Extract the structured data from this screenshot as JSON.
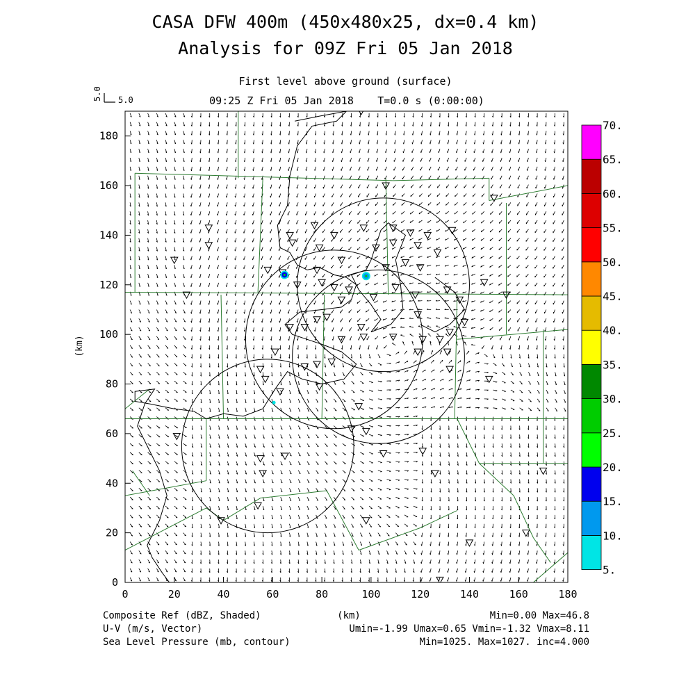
{
  "header": {
    "title_line1": "CASA DFW 400m (450x480x25, dx=0.4 km)",
    "title_line2": "Analysis for 09Z Fri 05 Jan 2018",
    "level": "First level above ground (surface)",
    "valid_time": "09:25 Z Fri 05 Jan 2018",
    "model_time": "T=0.0 s (0:00:00)",
    "ref_vector_label": "5.0",
    "ref_vector_label_vertical": "5.0"
  },
  "footer": {
    "field1": "Composite Ref (dBZ, Shaded)",
    "field1_stats": "Min=0.00 Max=46.8",
    "field2": "U-V (m/s, Vector)",
    "field2_stats": "Umin=-1.99 Umax=0.65 Vmin=-1.32 Vmax=8.11",
    "field3": "Sea Level Pressure (mb, contour)",
    "field3_stats": "Min=1025. Max=1027. inc=4.000",
    "xunit": "(km)"
  },
  "colors": {
    "border": "#2e7d32",
    "contour": "#000000",
    "vector": "#000000"
  },
  "chart_data": {
    "type": "heatmap",
    "xlabel": "(km)",
    "ylabel": "(km)",
    "xlim": [
      0,
      180
    ],
    "ylim": [
      0,
      190
    ],
    "x_ticks": [
      "0",
      "20",
      "40",
      "60",
      "80",
      "100",
      "120",
      "140",
      "160",
      "180"
    ],
    "y_ticks": [
      "0",
      "20",
      "40",
      "60",
      "80",
      "100",
      "120",
      "140",
      "160",
      "180"
    ],
    "colorbar": {
      "labels": [
        "5.",
        "10.",
        "15.",
        "20.",
        "25.",
        "30.",
        "35.",
        "40.",
        "45.",
        "50.",
        "55.",
        "60.",
        "65.",
        "70."
      ],
      "colors": [
        "#00e5e5",
        "#0099ee",
        "#0000ee",
        "#00ff00",
        "#00cc00",
        "#008800",
        "#ffff00",
        "#e5bb00",
        "#ff8800",
        "#ff0000",
        "#dd0000",
        "#bb0000",
        "#ff00ff"
      ]
    },
    "reflectivity_cells": [
      {
        "x": 64.8,
        "y": 124.0,
        "dbz": 15
      },
      {
        "x": 98.0,
        "y": 123.5,
        "dbz": 12
      },
      {
        "x": 60.5,
        "y": 72.5,
        "dbz": 8
      }
    ],
    "radar_range_rings": [
      {
        "x": 103,
        "y": 91,
        "r": 35
      },
      {
        "x": 85,
        "y": 98,
        "r": 36
      },
      {
        "x": 105,
        "y": 120,
        "r": 35
      },
      {
        "x": 58,
        "y": 55,
        "r": 35
      }
    ],
    "stations": [
      [
        96,
        190
      ],
      [
        106,
        160
      ],
      [
        34,
        143
      ],
      [
        67,
        140
      ],
      [
        77,
        144
      ],
      [
        85,
        140
      ],
      [
        97,
        143
      ],
      [
        109,
        143
      ],
      [
        116,
        141
      ],
      [
        123,
        140
      ],
      [
        133,
        142
      ],
      [
        34,
        136
      ],
      [
        68,
        137
      ],
      [
        79,
        135
      ],
      [
        88,
        130
      ],
      [
        102,
        135
      ],
      [
        109,
        137
      ],
      [
        119,
        136
      ],
      [
        127,
        133
      ],
      [
        20,
        130
      ],
      [
        58,
        126
      ],
      [
        64,
        125
      ],
      [
        78,
        126
      ],
      [
        106,
        127
      ],
      [
        114,
        129
      ],
      [
        120,
        127
      ],
      [
        146,
        121
      ],
      [
        25,
        116
      ],
      [
        70,
        120
      ],
      [
        80,
        121
      ],
      [
        85,
        119
      ],
      [
        91,
        118
      ],
      [
        88,
        114
      ],
      [
        101,
        115
      ],
      [
        110,
        119
      ],
      [
        118,
        116
      ],
      [
        131,
        118
      ],
      [
        136,
        114
      ],
      [
        155,
        116
      ],
      [
        119,
        108
      ],
      [
        138,
        105
      ],
      [
        67,
        103
      ],
      [
        73,
        103
      ],
      [
        78,
        106
      ],
      [
        82,
        107
      ],
      [
        96,
        103
      ],
      [
        109,
        99
      ],
      [
        121,
        98
      ],
      [
        128,
        98
      ],
      [
        132,
        101
      ],
      [
        88,
        98
      ],
      [
        97,
        99
      ],
      [
        61,
        93
      ],
      [
        73,
        87
      ],
      [
        78,
        88
      ],
      [
        84,
        89
      ],
      [
        119,
        93
      ],
      [
        131,
        93
      ],
      [
        132,
        86
      ],
      [
        148,
        82
      ],
      [
        55,
        86
      ],
      [
        57,
        82
      ],
      [
        63,
        77
      ],
      [
        79,
        79
      ],
      [
        95,
        71
      ],
      [
        92,
        62
      ],
      [
        98,
        61
      ],
      [
        105,
        52
      ],
      [
        121,
        53
      ],
      [
        126,
        44
      ],
      [
        65,
        51
      ],
      [
        55,
        50
      ],
      [
        56,
        44
      ],
      [
        21,
        59
      ],
      [
        54,
        31
      ],
      [
        39,
        25
      ],
      [
        98,
        25
      ],
      [
        140,
        16
      ],
      [
        163,
        20
      ],
      [
        170,
        45
      ],
      [
        128,
        1
      ],
      [
        150,
        155
      ]
    ]
  }
}
